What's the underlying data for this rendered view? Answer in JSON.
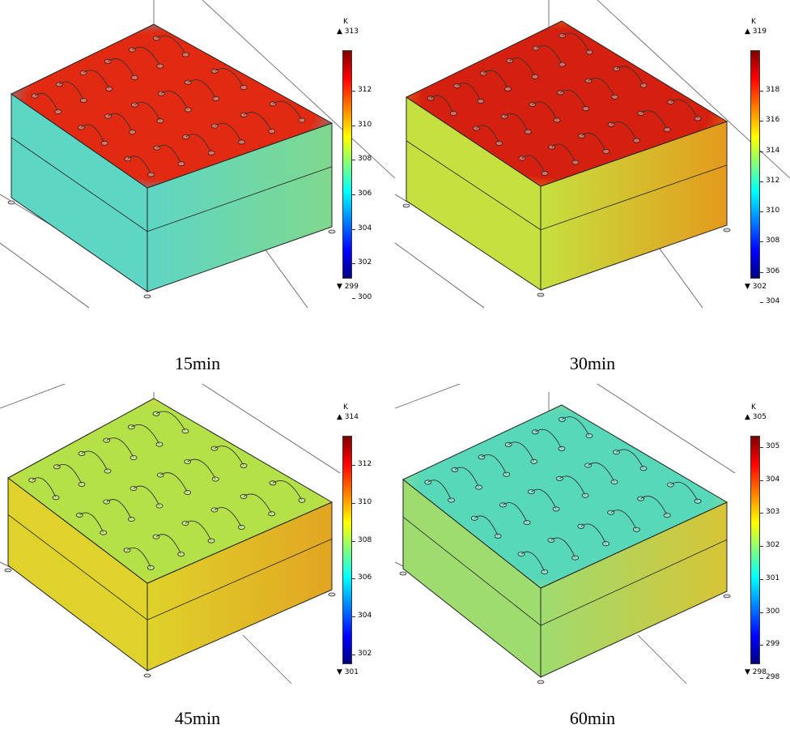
{
  "figure": {
    "panels": [
      {
        "caption": "15min",
        "colorbar": {
          "unit": "K",
          "max": "313",
          "min": "299",
          "ticks": [
            "312",
            "310",
            "308",
            "306",
            "304",
            "302",
            "300"
          ]
        },
        "top_color": "#e22a12",
        "top_edge_color": "#3fc8e8",
        "front_color": "#5ed6c4",
        "side_color": "#7fd88e"
      },
      {
        "caption": "30min",
        "colorbar": {
          "unit": "K",
          "max": "319",
          "min": "302",
          "ticks": [
            "318",
            "316",
            "314",
            "312",
            "310",
            "308",
            "306",
            "304"
          ]
        },
        "top_color": "#d5200f",
        "top_edge_color": "#f2a20c",
        "front_color": "#c6e040",
        "side_color": "#e49a1c"
      },
      {
        "caption": "45min",
        "colorbar": {
          "unit": "K",
          "max": "314",
          "min": "301",
          "ticks": [
            "312",
            "310",
            "308",
            "306",
            "304",
            "302"
          ]
        },
        "top_color": "#b4e048",
        "top_edge_color": "#e8d82e",
        "front_color": "#dfd22a",
        "side_color": "#e2a522"
      },
      {
        "caption": "60min",
        "colorbar": {
          "unit": "K",
          "max": "305",
          "min": "298",
          "ticks": [
            "305",
            "304",
            "303",
            "302",
            "301",
            "300",
            "299",
            "298"
          ]
        },
        "top_color": "#57d8b8",
        "top_edge_color": "#a9e074",
        "front_color": "#9fdc70",
        "side_color": "#d7c435"
      }
    ]
  }
}
